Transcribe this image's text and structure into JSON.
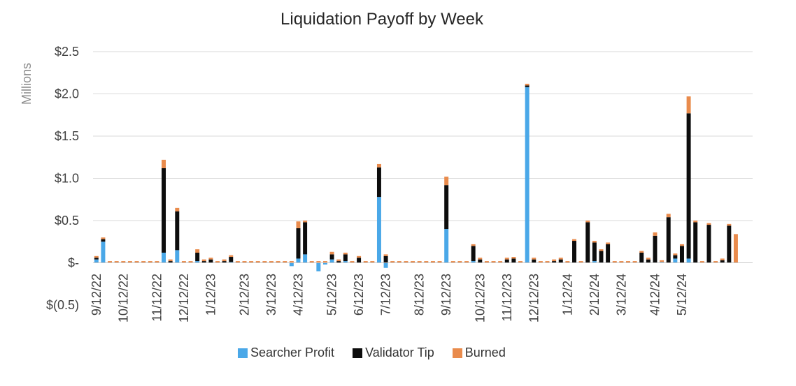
{
  "chart_data": {
    "type": "bar",
    "stacked": true,
    "title": "Liquidation Payoff by Week",
    "ylabel": "Millions",
    "xlabel": "",
    "ylim": [
      -0.5,
      2.5
    ],
    "yticks": [
      {
        "value": 2.5,
        "label": "$2.5"
      },
      {
        "value": 2.0,
        "label": "$2.0"
      },
      {
        "value": 1.5,
        "label": "$1.5"
      },
      {
        "value": 1.0,
        "label": "$1.0"
      },
      {
        "value": 0.5,
        "label": "$0.5"
      },
      {
        "value": 0.0,
        "label": "$-"
      },
      {
        "value": -0.5,
        "label": "$(0.5)"
      }
    ],
    "xtick_labels": [
      "9/12/22",
      "10/12/22",
      "11/12/22",
      "12/12/22",
      "1/12/23",
      "2/12/23",
      "3/12/23",
      "4/12/23",
      "5/12/23",
      "6/12/23",
      "7/12/23",
      "8/12/23",
      "9/12/23",
      "10/12/23",
      "11/12/23",
      "12/12/23",
      "1/12/24",
      "2/12/24",
      "3/12/24",
      "4/12/24",
      "5/12/24"
    ],
    "xtick_week_index": [
      0,
      4,
      9,
      13,
      17,
      22,
      26,
      30,
      35,
      39,
      43,
      48,
      52,
      57,
      61,
      65,
      70,
      74,
      78,
      83,
      87
    ],
    "grid": true,
    "legend_position": "bottom",
    "colors": {
      "searcher": "#4aa8e8",
      "validator": "#0d0d0d",
      "burned": "#e98b4c",
      "grid": "#d9d9d9",
      "axis_text": "#404040"
    },
    "series": [
      {
        "name": "Searcher Profit",
        "color": "#4aa8e8",
        "values": [
          0.04,
          0.25,
          0,
          0,
          0,
          0,
          0,
          0,
          0,
          0,
          0.12,
          0,
          0.15,
          0,
          0,
          0.02,
          0,
          0,
          0,
          0,
          0.01,
          0,
          0,
          0,
          0,
          0,
          0,
          0,
          0,
          -0.04,
          0.05,
          0.1,
          0,
          -0.1,
          -0.02,
          0.04,
          0,
          0.02,
          0,
          0,
          0,
          0,
          0.78,
          -0.06,
          0,
          0,
          0,
          0,
          0,
          0,
          0,
          0,
          0.4,
          0,
          0,
          0,
          0.02,
          0,
          0,
          0,
          0,
          0,
          0,
          0,
          2.08,
          0,
          0,
          0,
          0,
          0,
          0,
          0,
          0,
          0,
          0.02,
          0,
          0,
          0,
          0,
          0,
          0,
          0,
          0,
          0,
          0.01,
          0,
          0.05,
          0,
          0.05,
          0,
          0,
          0,
          0,
          0,
          0,
          0,
          0,
          0
        ]
      },
      {
        "name": "Validator Tip",
        "color": "#0d0d0d",
        "values": [
          0.02,
          0.03,
          0,
          0,
          0,
          0,
          0,
          0,
          0,
          0,
          1.0,
          0.02,
          0.46,
          0,
          0,
          0.1,
          0.02,
          0.04,
          0,
          0.02,
          0.06,
          0,
          0,
          0,
          0,
          0,
          0,
          0,
          0,
          0,
          0.36,
          0.38,
          0,
          0,
          0,
          0.06,
          0.02,
          0.08,
          0,
          0.06,
          0,
          0,
          0.35,
          0.08,
          0,
          0,
          0,
          0,
          0,
          0,
          0,
          0,
          0.52,
          0,
          0,
          0,
          0.18,
          0.04,
          0,
          0,
          0,
          0.04,
          0.05,
          0,
          0.02,
          0.04,
          0,
          0,
          0.02,
          0.04,
          0,
          0.26,
          0,
          0.48,
          0.22,
          0.14,
          0.22,
          0,
          0,
          0,
          0,
          0.12,
          0.04,
          0.32,
          0,
          0.54,
          0.04,
          0.2,
          1.72,
          0.48,
          0,
          0.45,
          0,
          0.03,
          0.44,
          0
        ]
      },
      {
        "name": "Burned",
        "color": "#e98b4c",
        "values": [
          0.02,
          0.02,
          0.02,
          0.02,
          0.02,
          0.02,
          0.02,
          0.02,
          0.02,
          0.02,
          0.1,
          0.02,
          0.04,
          0.02,
          0.02,
          0.04,
          0.02,
          0.02,
          0.02,
          0.02,
          0.02,
          0.02,
          0.02,
          0.02,
          0.02,
          0.02,
          0.02,
          0.02,
          0.02,
          0.02,
          0.08,
          0.02,
          0.02,
          0.02,
          0.02,
          0.03,
          0.02,
          0.02,
          0.02,
          0.02,
          0.02,
          0.02,
          0.04,
          0.02,
          0.02,
          0.02,
          0.02,
          0.02,
          0.02,
          0.02,
          0.02,
          0.02,
          0.1,
          0.02,
          0.02,
          0.02,
          0.02,
          0.02,
          0.02,
          0.02,
          0.02,
          0.02,
          0.02,
          0.02,
          0.02,
          0.02,
          0.02,
          0.02,
          0.02,
          0.02,
          0.02,
          0.02,
          0.02,
          0.02,
          0.02,
          0.02,
          0.02,
          0.02,
          0.02,
          0.02,
          0.02,
          0.02,
          0.02,
          0.04,
          0.02,
          0.04,
          0.02,
          0.02,
          0.2,
          0.02,
          0.02,
          0.02,
          0.02,
          0.02,
          0.02,
          0.34
        ]
      }
    ]
  },
  "legend": {
    "searcher_label": "Searcher Profit",
    "validator_label": "Validator Tip",
    "burned_label": "Burned"
  }
}
